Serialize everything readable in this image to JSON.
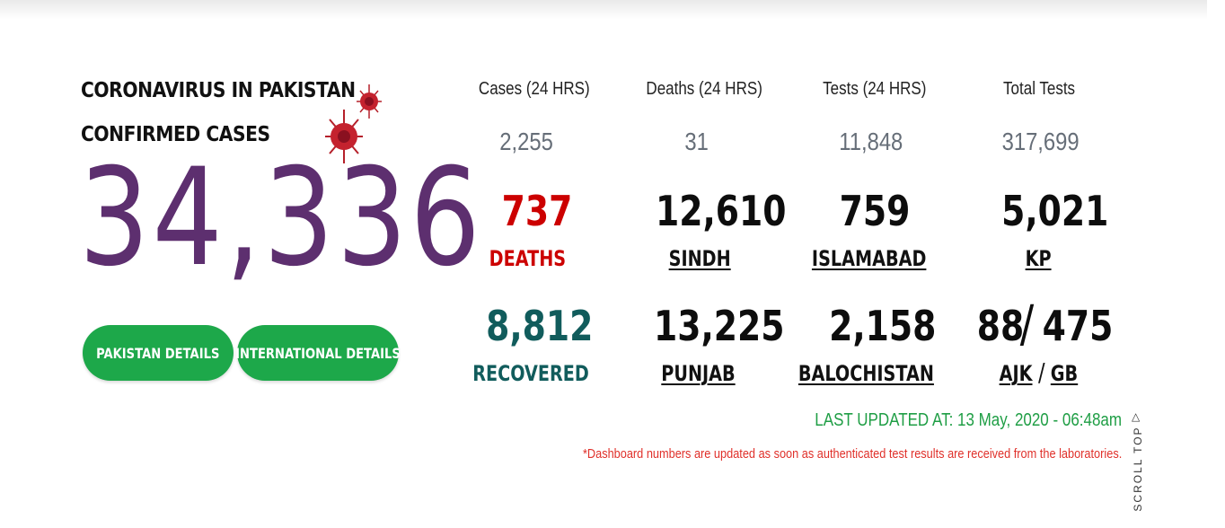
{
  "hero": {
    "title_line1": "CORONAVIRUS IN PAKISTAN",
    "title_line2": "CONFIRMED CASES",
    "confirmed_total": "34,336",
    "number_color": "#5d2f6f",
    "virus_icon": "coronavirus-icon"
  },
  "buttons": {
    "pakistan_details": "PAKISTAN DETAILS",
    "international_details": "INTERNATIONAL DETAILS",
    "color": "#1da84a"
  },
  "daily": {
    "cases": {
      "label": "Cases (24 HRS)",
      "value": "2,255"
    },
    "deaths": {
      "label": "Deaths (24 HRS)",
      "value": "31"
    },
    "tests": {
      "label": "Tests (24 HRS)",
      "value": "11,848"
    },
    "total_tests": {
      "label": "Total Tests",
      "value": "317,699"
    }
  },
  "stats": {
    "deaths": {
      "value": "737",
      "label": "DEATHS",
      "color": "#cc0000"
    },
    "recovered": {
      "value": "8,812",
      "label": "RECOVERED",
      "color": "#115c5c"
    },
    "sindh": {
      "value": "12,610",
      "label": "SINDH"
    },
    "punjab": {
      "value": "13,225",
      "label": "PUNJAB"
    },
    "islamabad": {
      "value": "759",
      "label": "ISLAMABAD"
    },
    "balochistan": {
      "value": "2,158",
      "label": "BALOCHISTAN"
    },
    "kp": {
      "value": "5,021",
      "label": "KP"
    },
    "ajk": {
      "value": "88",
      "label": "AJK"
    },
    "gb": {
      "value": "475",
      "label": "GB"
    },
    "separator": "/"
  },
  "footer": {
    "last_updated": "LAST UPDATED AT: 13 May, 2020 - 06:48am",
    "note": "*Dashboard numbers are updated as soon as authenticated test results are received from the laboratories.",
    "scroll_top": "SCROLL TOP",
    "scroll_top_icon": "chevron-up-icon"
  }
}
